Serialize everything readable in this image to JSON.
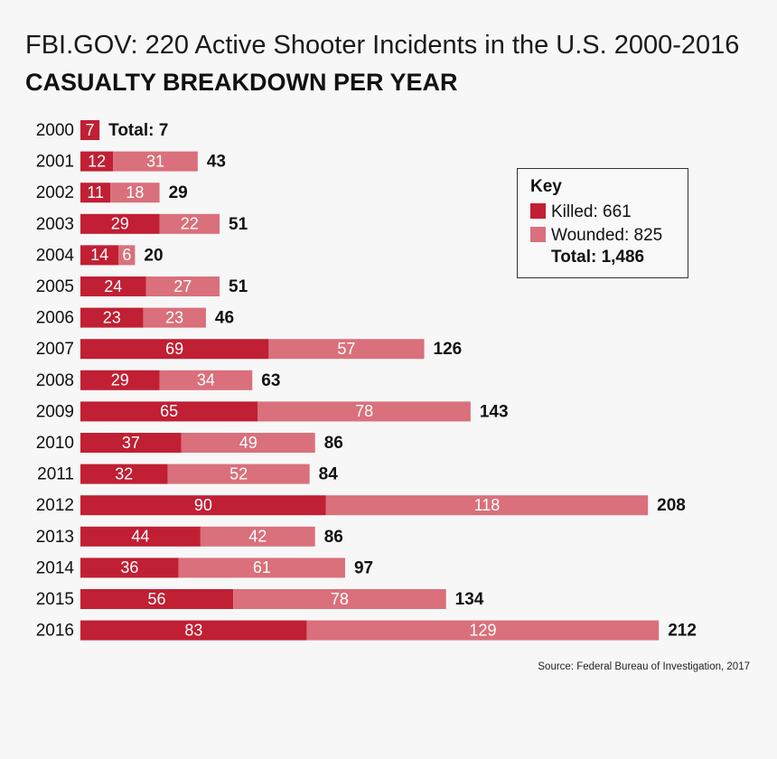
{
  "title": "FBI.GOV: 220 Active Shooter Incidents in the U.S. 2000-2016",
  "subtitle": "CASUALTY BREAKDOWN PER YEAR",
  "key": {
    "title": "Key",
    "killed_label": "Killed: 661",
    "wounded_label": "Wounded: 825",
    "total_label": "Total: 1,486"
  },
  "source": "Source: Federal Bureau of Investigation, 2017",
  "colors": {
    "killed": "#c11f33",
    "wounded": "#d9707b"
  },
  "chart_data": {
    "type": "bar",
    "orientation": "horizontal",
    "stacked": true,
    "categories": [
      "2000",
      "2001",
      "2002",
      "2003",
      "2004",
      "2005",
      "2006",
      "2007",
      "2008",
      "2009",
      "2010",
      "2011",
      "2012",
      "2013",
      "2014",
      "2015",
      "2016"
    ],
    "series": [
      {
        "name": "Killed",
        "values": [
          7,
          12,
          11,
          29,
          14,
          24,
          23,
          69,
          29,
          65,
          37,
          32,
          90,
          44,
          36,
          56,
          83
        ]
      },
      {
        "name": "Wounded",
        "values": [
          0,
          31,
          18,
          22,
          6,
          27,
          23,
          57,
          34,
          78,
          49,
          52,
          118,
          42,
          61,
          78,
          129
        ]
      }
    ],
    "totals": [
      7,
      43,
      29,
      51,
      20,
      51,
      46,
      126,
      63,
      143,
      86,
      84,
      208,
      86,
      97,
      134,
      212
    ],
    "first_total_label": "Total: 7"
  }
}
